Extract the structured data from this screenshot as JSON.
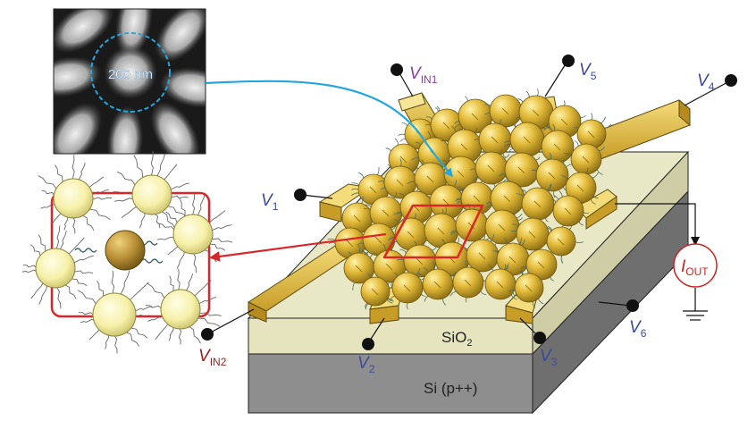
{
  "scale_bar": "200 nm",
  "terminals": {
    "vin1": {
      "main": "V",
      "sub": "IN1",
      "color": "#8e3f9c"
    },
    "v5": {
      "main": "V",
      "sub": "5",
      "color": "#3b4a9a"
    },
    "v4": {
      "main": "V",
      "sub": "4",
      "color": "#3b4a9a"
    },
    "v1": {
      "main": "V",
      "sub": "1",
      "color": "#3b4a9a"
    },
    "v2": {
      "main": "V",
      "sub": "2",
      "color": "#3b4a9a"
    },
    "v3": {
      "main": "V",
      "sub": "3",
      "color": "#3b4a9a"
    },
    "v6": {
      "main": "V",
      "sub": "6",
      "color": "#3b4a9a"
    },
    "vin2": {
      "main": "V",
      "sub": "IN2",
      "color": "#9b1c1c"
    }
  },
  "output": {
    "main": "I",
    "sub": "OUT",
    "color": "#d11f1f"
  },
  "layers": {
    "sio2_main": "SiO",
    "sio2_sub": "2",
    "si": "Si (p++)"
  },
  "colors": {
    "gold": "#e8c44c",
    "gold_dark": "#8f7418",
    "sio2": "#e8e6c2",
    "si": "#8c8c8c",
    "highlight": "#d8272b",
    "arrow_blue": "#26a6dd"
  }
}
